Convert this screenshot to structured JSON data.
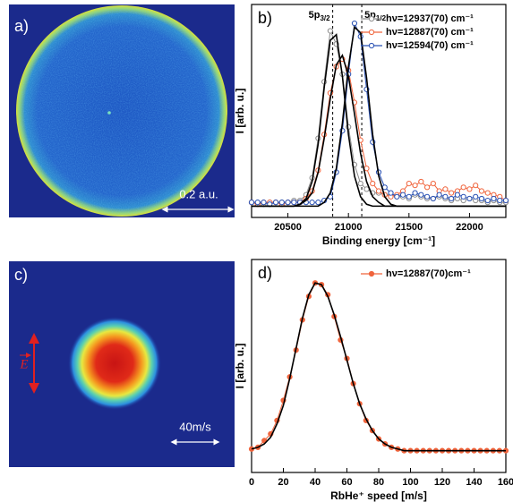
{
  "images": [
    {
      "label": "a)",
      "scale_bar": "0.2 a.u."
    },
    {
      "label": "c)",
      "scale_bar": "40m/s",
      "field": "E"
    }
  ],
  "chart_data": [
    {
      "type": "line",
      "panel_label": "b)",
      "x_label": "Binding energy [cm⁻¹]",
      "y_label": "I [arb. u.]",
      "xlim": [
        20200,
        22300
      ],
      "ylim": [
        -0.06,
        1.07
      ],
      "xticks": [
        20500,
        21000,
        21500,
        22000
      ],
      "legend": "upper right",
      "fit_color": "#000000",
      "annotations": [
        {
          "x": 20870,
          "label": "5p",
          "sub": "3/2"
        },
        {
          "x": 21110,
          "label": "5p",
          "sub": "1/2"
        }
      ],
      "x": [
        20200,
        20250,
        20300,
        20350,
        20400,
        20450,
        20500,
        20550,
        20600,
        20650,
        20700,
        20750,
        20800,
        20850,
        20900,
        20950,
        21000,
        21050,
        21100,
        21150,
        21200,
        21250,
        21300,
        21350,
        21400,
        21450,
        21500,
        21550,
        21600,
        21650,
        21700,
        21750,
        21800,
        21850,
        21900,
        21950,
        22000,
        22050,
        22100,
        22150,
        22200,
        22250,
        22300
      ],
      "series": [
        {
          "name": "hν=12937(70) cm⁻¹",
          "color": "#8c8c8c",
          "marker": "open",
          "values": [
            0.02,
            0.02,
            0.01,
            0.02,
            0.02,
            0.02,
            0.02,
            0.03,
            0.03,
            0.06,
            0.15,
            0.36,
            0.66,
            0.93,
            0.86,
            0.7,
            0.42,
            0.22,
            0.12,
            0.09,
            0.07,
            0.07,
            0.06,
            0.06,
            0.05,
            0.05,
            0.04,
            0.06,
            0.05,
            0.04,
            0.04,
            0.05,
            0.04,
            0.03,
            0.04,
            0.03,
            0.04,
            0.03,
            0.03,
            0.02,
            0.03,
            0.02,
            0.02
          ],
          "fit_values": [
            0,
            0,
            0,
            0,
            0,
            0,
            0,
            0,
            0.01,
            0.04,
            0.13,
            0.33,
            0.63,
            0.88,
            0.91,
            0.69,
            0.38,
            0.16,
            0.05,
            0.01,
            0,
            0,
            0,
            0,
            0,
            0,
            0,
            0,
            0,
            0,
            0,
            0,
            0,
            0,
            0,
            0,
            0,
            0,
            0,
            0,
            0,
            0,
            0
          ]
        },
        {
          "name": "hν=12887(70) cm⁻¹",
          "color": "#f0643c",
          "marker": "open",
          "values": [
            0.02,
            0.01,
            0.02,
            0.02,
            0.02,
            0.01,
            0.02,
            0.02,
            0.02,
            0.04,
            0.08,
            0.19,
            0.38,
            0.6,
            0.74,
            0.78,
            0.72,
            0.55,
            0.35,
            0.2,
            0.12,
            0.08,
            0.06,
            0.05,
            0.06,
            0.08,
            0.12,
            0.11,
            0.13,
            0.1,
            0.12,
            0.08,
            0.09,
            0.07,
            0.08,
            0.1,
            0.09,
            0.11,
            0.08,
            0.07,
            0.06,
            0.05,
            0.03
          ],
          "fit_values": [
            0,
            0,
            0,
            0,
            0,
            0,
            0,
            0,
            0.01,
            0.03,
            0.07,
            0.18,
            0.36,
            0.57,
            0.75,
            0.8,
            0.69,
            0.49,
            0.28,
            0.13,
            0.05,
            0.02,
            0,
            0,
            0,
            0,
            0,
            0,
            0,
            0,
            0,
            0,
            0,
            0,
            0,
            0,
            0,
            0,
            0,
            0,
            0,
            0,
            0
          ]
        },
        {
          "name": "hν=12594(70) cm⁻¹",
          "color": "#2850b4",
          "marker": "open",
          "values": [
            0.02,
            0.02,
            0.02,
            0.01,
            0.02,
            0.02,
            0.02,
            0.02,
            0.02,
            0.02,
            0.02,
            0.02,
            0.03,
            0.05,
            0.18,
            0.4,
            0.7,
            0.97,
            0.9,
            0.62,
            0.34,
            0.18,
            0.1,
            0.07,
            0.05,
            0.06,
            0.05,
            0.07,
            0.06,
            0.05,
            0.04,
            0.06,
            0.05,
            0.04,
            0.06,
            0.05,
            0.04,
            0.05,
            0.04,
            0.03,
            0.04,
            0.03,
            0.03
          ],
          "fit_values": [
            0,
            0,
            0,
            0,
            0,
            0,
            0,
            0,
            0,
            0,
            0,
            0,
            0.02,
            0.07,
            0.2,
            0.44,
            0.74,
            0.95,
            0.92,
            0.68,
            0.38,
            0.16,
            0.05,
            0.01,
            0,
            0,
            0,
            0,
            0,
            0,
            0,
            0,
            0,
            0,
            0,
            0,
            0,
            0,
            0,
            0,
            0,
            0,
            0
          ]
        }
      ]
    },
    {
      "type": "line",
      "panel_label": "d)",
      "x_label": "RbHe⁺ speed [m/s]",
      "y_label": "I [arb. u.]",
      "xlim": [
        0,
        160
      ],
      "ylim": [
        -0.13,
        1.14
      ],
      "xticks": [
        0,
        20,
        40,
        60,
        80,
        100,
        120,
        140,
        160
      ],
      "legend": "upper right",
      "fit_color": "#000000",
      "x": [
        0,
        4,
        8,
        12,
        16,
        20,
        24,
        28,
        32,
        36,
        40,
        44,
        48,
        52,
        56,
        60,
        64,
        68,
        72,
        76,
        80,
        84,
        88,
        92,
        96,
        100,
        104,
        108,
        112,
        116,
        120,
        124,
        128,
        132,
        136,
        140,
        144,
        148,
        152,
        156,
        160
      ],
      "series": [
        {
          "name": "hν=12887(70)cm⁻¹",
          "color": "#f0643c",
          "marker": "filled",
          "values": [
            0.01,
            0.02,
            0.06,
            0.1,
            0.18,
            0.3,
            0.44,
            0.6,
            0.78,
            0.92,
            1.0,
            0.99,
            0.93,
            0.8,
            0.66,
            0.55,
            0.4,
            0.28,
            0.18,
            0.12,
            0.07,
            0.04,
            0.02,
            0.01,
            0,
            0,
            0,
            0,
            0,
            0,
            0,
            0,
            0,
            0,
            0,
            0,
            0,
            0,
            0,
            0,
            0
          ],
          "fit_values": [
            0.01,
            0.02,
            0.04,
            0.08,
            0.16,
            0.27,
            0.43,
            0.61,
            0.79,
            0.93,
            1.0,
            0.99,
            0.92,
            0.81,
            0.68,
            0.54,
            0.4,
            0.28,
            0.19,
            0.12,
            0.07,
            0.04,
            0.02,
            0.01,
            0,
            0,
            0,
            0,
            0,
            0,
            0,
            0,
            0,
            0,
            0,
            0,
            0,
            0,
            0,
            0,
            0
          ]
        }
      ]
    }
  ]
}
